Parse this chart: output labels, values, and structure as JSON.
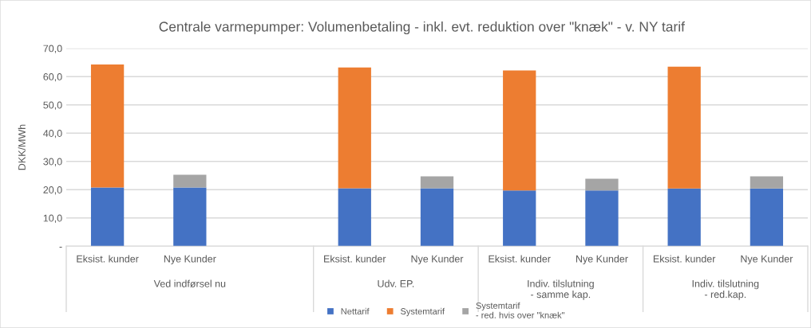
{
  "chart_data": {
    "type": "bar",
    "stacked": true,
    "title": "Centrale varmepumper: Volumenbetaling - inkl. evt. reduktion over \"knæk\" - v. NY tarif",
    "ylabel": "DKK/MWh",
    "categories": [
      "Eksist. kunder",
      "Nye Kunder",
      null,
      "Eksist. kunder",
      "Nye Kunder",
      "Eksist. kunder",
      "Nye Kunder",
      "Eksist. kunder",
      "Nye Kunder"
    ],
    "series": [
      {
        "name": "Nettarif",
        "color": "#4472c4",
        "values": [
          20.8,
          20.8,
          null,
          20.5,
          20.5,
          19.7,
          19.7,
          20.4,
          20.4
        ]
      },
      {
        "name": "Systemtarif",
        "color": "#ed7d31",
        "values": [
          43.5,
          null,
          null,
          42.7,
          null,
          42.5,
          null,
          43.1,
          null
        ]
      },
      {
        "name": "Systemtarif\n- red. hvis over \"knæk\"",
        "color": "#a5a5a5",
        "values": [
          null,
          4.5,
          null,
          null,
          4.2,
          null,
          4.2,
          null,
          4.3
        ]
      }
    ],
    "annotations": [
      "Ved indførsel nu",
      "Udv. EP.",
      "Indiv. tilslutning\n- samme kap.",
      "Indiv. tilslutning\n- red.kap."
    ],
    "ylim": [
      0,
      70
    ],
    "yticks": [
      {
        "value": 0,
        "label": "-"
      },
      {
        "value": 10,
        "label": "10,0"
      },
      {
        "value": 20,
        "label": "20,0"
      },
      {
        "value": 30,
        "label": "30,0"
      },
      {
        "value": 40,
        "label": "40,0"
      },
      {
        "value": 50,
        "label": "50,0"
      },
      {
        "value": 60,
        "label": "60,0"
      },
      {
        "value": 70,
        "label": "70,0"
      }
    ],
    "grid": "y",
    "legend": "bottom"
  }
}
